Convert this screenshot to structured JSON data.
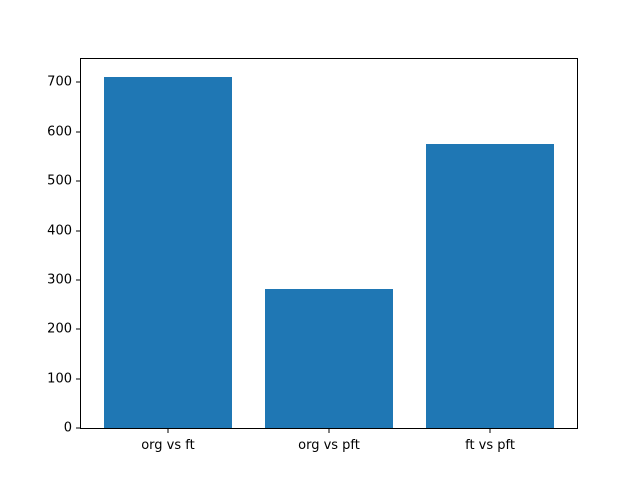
{
  "figure": {
    "background_color": "#ffffff",
    "spine_color": "#000000",
    "text_color": "#000000"
  },
  "chart_data": {
    "type": "bar",
    "title": "",
    "xlabel": "",
    "ylabel": "",
    "categories": [
      "org vs ft",
      "org vs pft",
      "ft vs pft"
    ],
    "values": [
      712,
      282,
      575
    ],
    "bar_color": "#1f77b4",
    "bar_width": 0.8,
    "yticks": [
      0,
      100,
      200,
      300,
      400,
      500,
      600,
      700
    ],
    "ylim": [
      0,
      747.6
    ],
    "xlim": [
      -0.54,
      2.54
    ],
    "grid": false,
    "legend": null
  }
}
